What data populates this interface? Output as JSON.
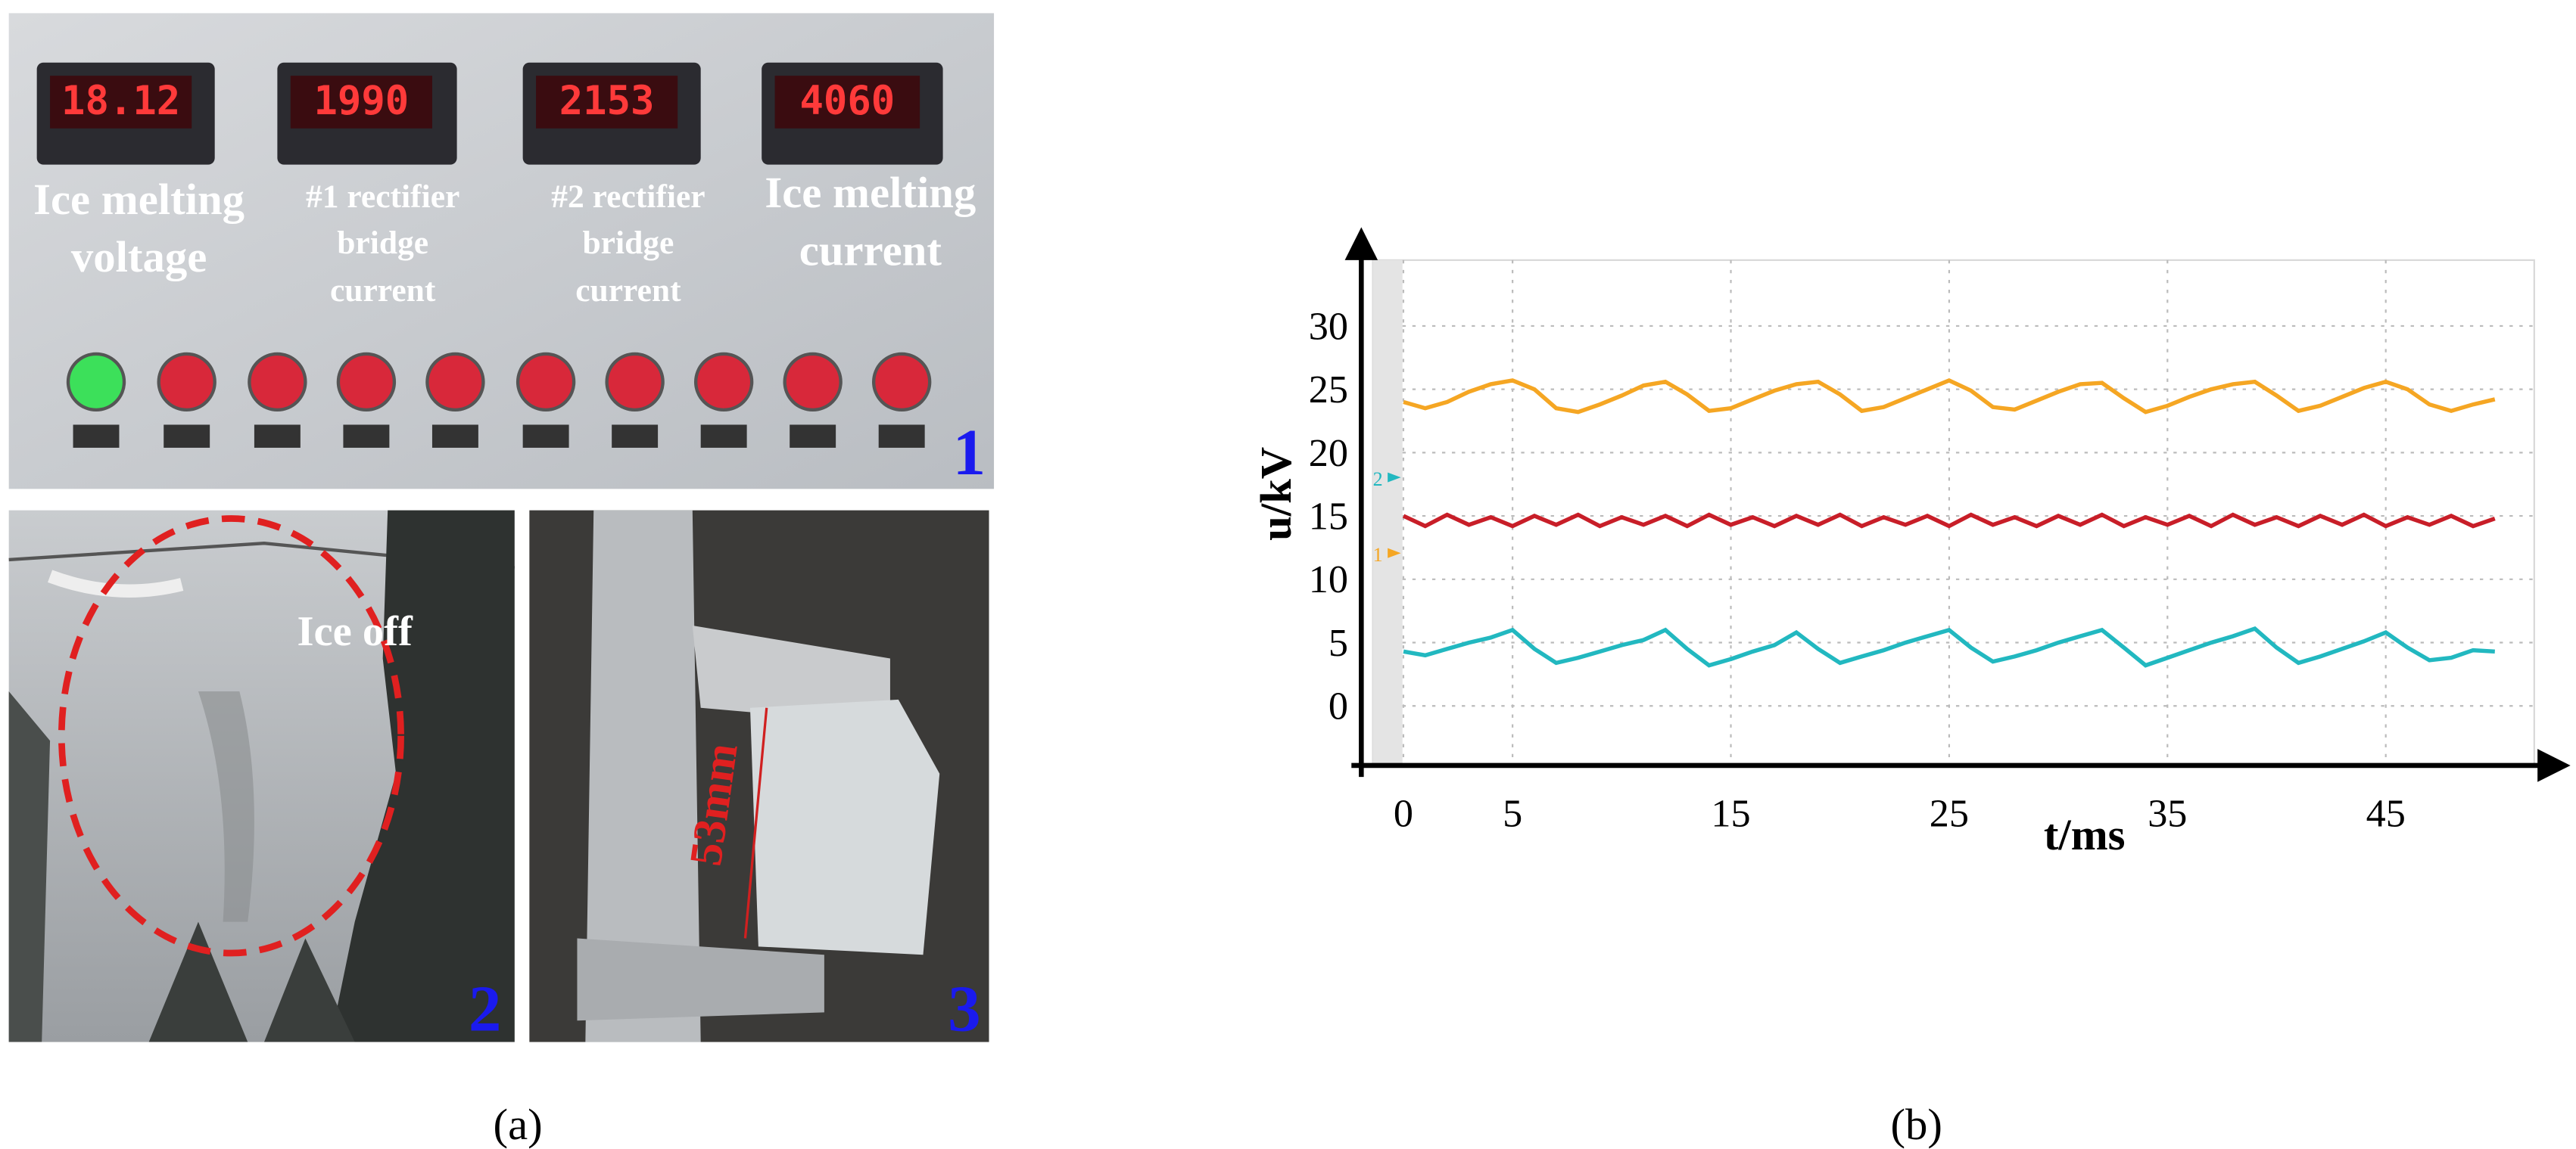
{
  "panel_a": {
    "meters": [
      {
        "reading": "18.12",
        "label": [
          "Ice melting",
          "voltage"
        ]
      },
      {
        "reading": "1990",
        "label": [
          "#1 rectifier",
          "bridge",
          "current"
        ]
      },
      {
        "reading": "2153",
        "label": [
          "#2 rectifier",
          "bridge",
          "current"
        ]
      },
      {
        "reading": "4060",
        "label": [
          "Ice melting",
          "current"
        ]
      }
    ],
    "photo_numbers": [
      "1",
      "2",
      "3"
    ],
    "annotation": "Ice off",
    "measurement": "53mm",
    "caption": "(a)"
  },
  "chart_data": {
    "type": "line",
    "xlabel": "t/ms",
    "ylabel": "u/kV",
    "x": [
      0,
      1,
      2,
      3,
      4,
      5,
      6,
      7,
      8,
      9,
      10,
      11,
      12,
      13,
      14,
      15,
      16,
      17,
      18,
      19,
      20,
      21,
      22,
      23,
      24,
      25,
      26,
      27,
      28,
      29,
      30,
      31,
      32,
      33,
      34,
      35,
      36,
      37,
      38,
      39,
      40,
      41,
      42,
      43,
      44,
      45,
      46,
      47,
      48,
      49,
      50
    ],
    "series": [
      {
        "color": "#f5a623",
        "values": [
          24,
          23.5,
          24,
          24.8,
          25.4,
          25.7,
          25,
          23.5,
          23.2,
          23.8,
          24.5,
          25.3,
          25.6,
          24.6,
          23.3,
          23.5,
          24.2,
          24.9,
          25.4,
          25.6,
          24.6,
          23.3,
          23.6,
          24.3,
          25,
          25.7,
          24.9,
          23.6,
          23.4,
          24.1,
          24.8,
          25.4,
          25.5,
          24.3,
          23.2,
          23.7,
          24.4,
          25,
          25.4,
          25.6,
          24.5,
          23.3,
          23.7,
          24.4,
          25.1,
          25.6,
          25,
          23.8,
          23.3,
          23.8,
          24.2
        ]
      },
      {
        "color": "#c81e28",
        "values": [
          15,
          14.2,
          15.1,
          14.3,
          14.9,
          14.2,
          15,
          14.3,
          15.1,
          14.2,
          14.9,
          14.3,
          15,
          14.2,
          15.1,
          14.3,
          14.9,
          14.2,
          15,
          14.3,
          15.1,
          14.2,
          14.9,
          14.3,
          15,
          14.2,
          15.1,
          14.3,
          14.9,
          14.2,
          15,
          14.3,
          15.1,
          14.2,
          14.9,
          14.3,
          15,
          14.2,
          15.1,
          14.3,
          14.9,
          14.2,
          15,
          14.3,
          15.1,
          14.2,
          14.9,
          14.3,
          15,
          14.2,
          14.8
        ]
      },
      {
        "color": "#22b8c0",
        "values": [
          4.3,
          4,
          4.5,
          5,
          5.4,
          6,
          4.5,
          3.4,
          3.8,
          4.3,
          4.8,
          5.2,
          6,
          4.5,
          3.2,
          3.7,
          4.3,
          4.8,
          5.8,
          4.5,
          3.4,
          3.9,
          4.4,
          5,
          5.5,
          6,
          4.6,
          3.5,
          3.9,
          4.4,
          5,
          5.5,
          6,
          4.6,
          3.2,
          3.8,
          4.4,
          5,
          5.5,
          6.1,
          4.6,
          3.4,
          3.9,
          4.5,
          5.1,
          5.8,
          4.6,
          3.6,
          3.8,
          4.4,
          4.3
        ]
      }
    ],
    "xlim": [
      -1.4,
      51.8
    ],
    "ylim": [
      -4.7,
      35.2
    ],
    "xticks": [
      0,
      5,
      15,
      25,
      35,
      45
    ],
    "yticks": [
      0,
      5,
      10,
      15,
      20,
      25,
      30
    ],
    "grid": true,
    "channel_markers": [
      "2",
      "1"
    ],
    "caption": "(b)"
  }
}
